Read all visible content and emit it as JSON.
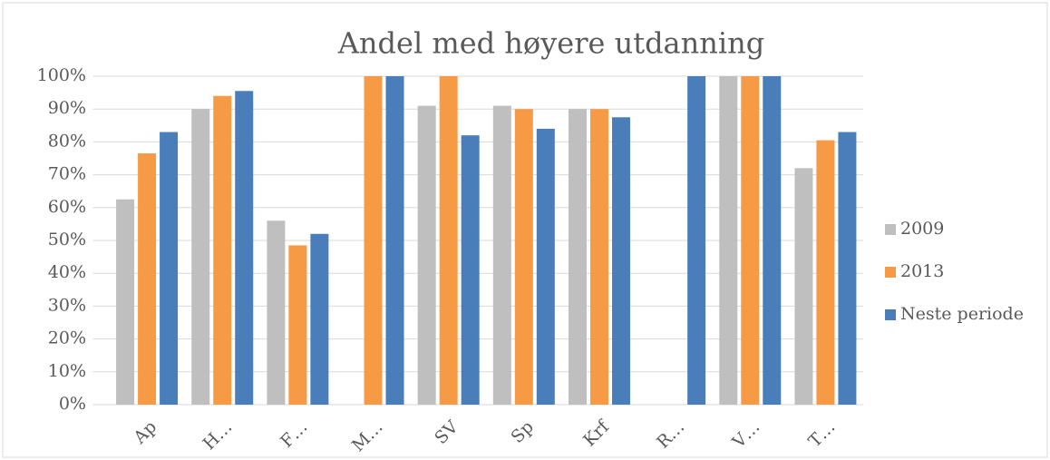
{
  "chart_data": {
    "type": "bar",
    "title": "Andel med høyere utdanning",
    "categories": [
      "Ap",
      "H…",
      "F…",
      "M…",
      "SV",
      "Sp",
      "Krf",
      "R…",
      "V…",
      "T…"
    ],
    "series": [
      {
        "name": "2009",
        "color": "#bfbfbf",
        "values": [
          62.5,
          90,
          56,
          null,
          91,
          91,
          90,
          null,
          100,
          72
        ]
      },
      {
        "name": "2013",
        "color": "#f79a45",
        "values": [
          76.5,
          94,
          48.5,
          100,
          100,
          90,
          90,
          null,
          100,
          80.5
        ]
      },
      {
        "name": "Neste periode",
        "color": "#4a7ebb",
        "values": [
          83,
          95.5,
          52,
          100,
          82,
          84,
          87.5,
          100,
          100,
          83
        ]
      }
    ],
    "ylim": [
      0,
      100
    ],
    "yticks": [
      {
        "value": 0,
        "label": "0%"
      },
      {
        "value": 10,
        "label": "10%"
      },
      {
        "value": 20,
        "label": "20%"
      },
      {
        "value": 30,
        "label": "30%"
      },
      {
        "value": 40,
        "label": "40%"
      },
      {
        "value": 50,
        "label": "50%"
      },
      {
        "value": 60,
        "label": "60%"
      },
      {
        "value": 70,
        "label": "70%"
      },
      {
        "value": 80,
        "label": "80%"
      },
      {
        "value": 90,
        "label": "90%"
      },
      {
        "value": 100,
        "label": "100%"
      }
    ],
    "grid": true,
    "legend": "right"
  }
}
